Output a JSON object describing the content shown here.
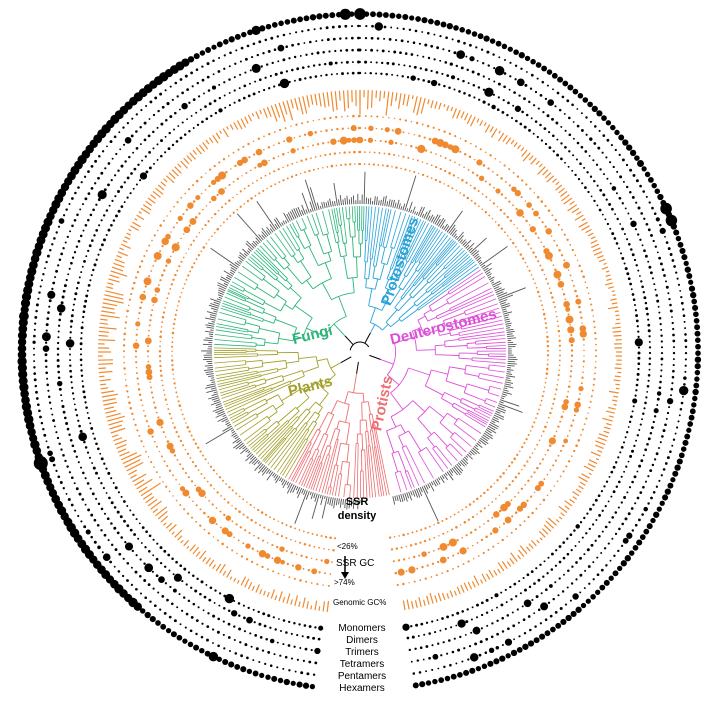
{
  "clades": [
    {
      "name": "Fungi",
      "color": "#2bb57a"
    },
    {
      "name": "Protostomes",
      "color": "#2aa3d8"
    },
    {
      "name": "Deuterostomes",
      "color": "#dd4fd8"
    },
    {
      "name": "Protists",
      "color": "#ee6f73"
    },
    {
      "name": "Plants",
      "color": "#a3a02a"
    }
  ],
  "labels": {
    "ssr_density": "SSR density",
    "ssr_density_line1": "SSR",
    "ssr_density_line2": "density",
    "gc_low": "<26%",
    "ssr_gc": "SSR GC",
    "gc_high": ">74%",
    "genomic_gc": "Genomic GC%"
  },
  "repeat_rings": [
    "Monomers",
    "Dimers",
    "Trimers",
    "Tetramers",
    "Pentamers",
    "Hexamers"
  ],
  "colors": {
    "orange": "#f08a30",
    "black": "#000000",
    "gray": "#555555"
  }
}
